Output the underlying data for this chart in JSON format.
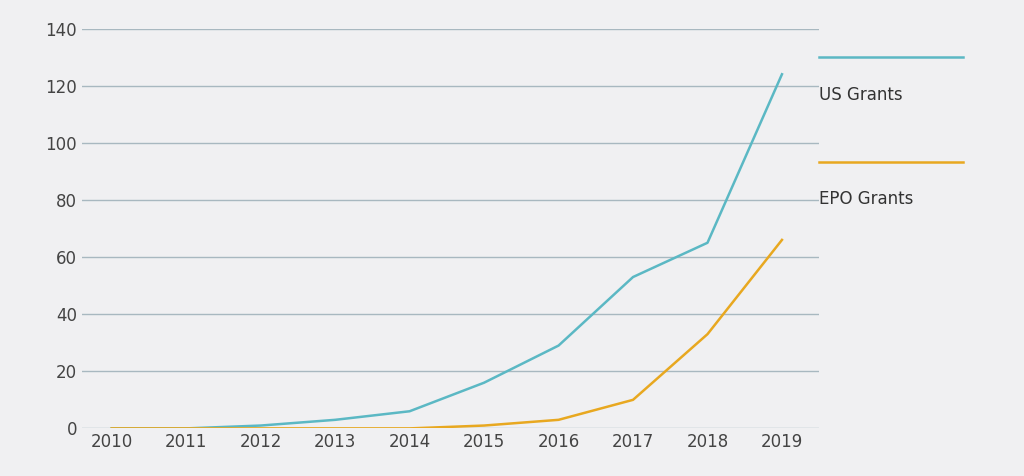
{
  "years": [
    2010,
    2011,
    2012,
    2013,
    2014,
    2015,
    2016,
    2017,
    2018,
    2019
  ],
  "us_grants": [
    0,
    0,
    1,
    3,
    6,
    16,
    29,
    53,
    65,
    124
  ],
  "epo_grants": [
    0,
    0,
    0,
    0,
    0,
    1,
    3,
    10,
    33,
    66
  ],
  "us_color": "#5bb8c4",
  "epo_color": "#e8a820",
  "background_color": "#f0f0f2",
  "grid_color": "#a8b8c0",
  "grid_linewidth": 1.0,
  "line_width": 1.8,
  "ylim": [
    0,
    140
  ],
  "yticks": [
    0,
    20,
    40,
    60,
    80,
    100,
    120,
    140
  ],
  "xlim": [
    2009.6,
    2019.5
  ],
  "xticks": [
    2010,
    2011,
    2012,
    2013,
    2014,
    2015,
    2016,
    2017,
    2018,
    2019
  ],
  "legend_us": "US Grants",
  "legend_epo": "EPO Grants",
  "tick_fontsize": 12,
  "legend_fontsize": 12,
  "axes_label_color": "#444444",
  "legend_label_color": "#333333"
}
